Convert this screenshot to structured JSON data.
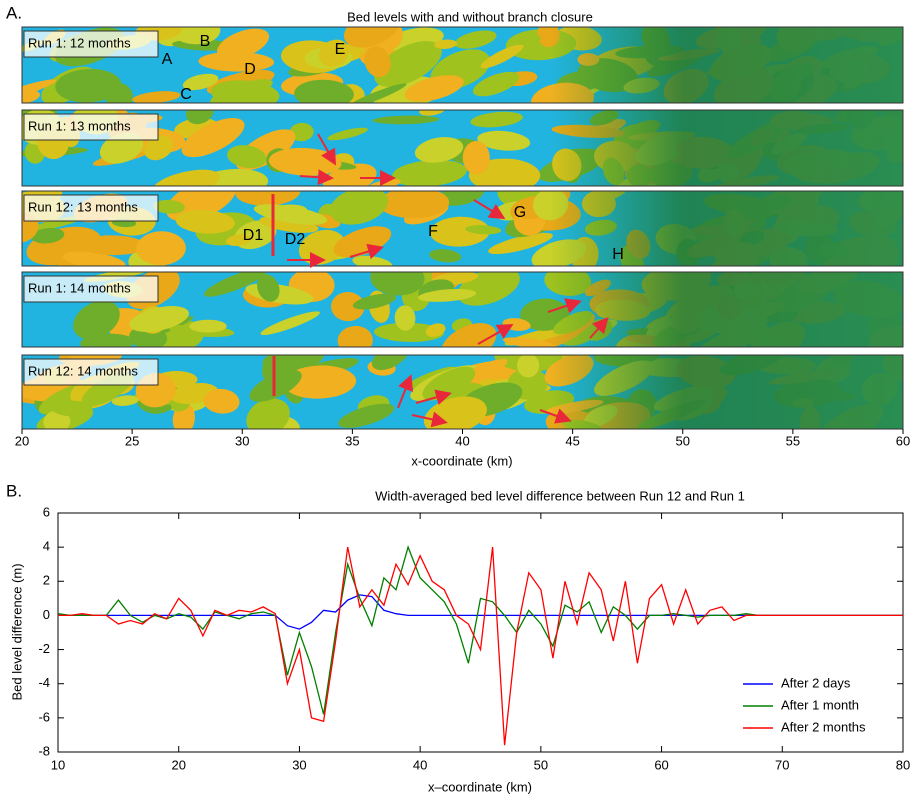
{
  "panel_a": {
    "label": "A.",
    "title": "Bed levels with and without branch closure",
    "strips": [
      "Run 1: 12 months",
      "Run 1: 13 months",
      "Run 12: 13 months",
      "Run 1: 14 months",
      "Run 12: 14 months"
    ],
    "annotations": [
      "A",
      "B",
      "C",
      "D",
      "E",
      "D1",
      "D2",
      "F",
      "G",
      "H"
    ],
    "xlabel": "x-coordinate (km)",
    "xlim": [
      20,
      60
    ],
    "xticks": [
      20,
      25,
      30,
      35,
      40,
      45,
      50,
      55,
      60
    ]
  },
  "chart_data": {
    "type": "line",
    "label": "B.",
    "title": "Width-averaged bed level difference between Run 12 and Run 1",
    "xlabel": "x–coordinate (km)",
    "ylabel": "Bed level difference (m)",
    "xlim": [
      10,
      80
    ],
    "ylim": [
      -8,
      6
    ],
    "xticks": [
      10,
      20,
      30,
      40,
      50,
      60,
      70,
      80
    ],
    "yticks": [
      -8,
      -6,
      -4,
      -2,
      0,
      2,
      4,
      6
    ],
    "legend": "lower right",
    "x": [
      10,
      11,
      12,
      13,
      14,
      15,
      16,
      17,
      18,
      19,
      20,
      21,
      22,
      23,
      24,
      25,
      26,
      27,
      28,
      29,
      30,
      31,
      32,
      33,
      34,
      35,
      36,
      37,
      38,
      39,
      40,
      41,
      42,
      43,
      44,
      45,
      46,
      47,
      48,
      49,
      50,
      51,
      52,
      53,
      54,
      55,
      56,
      57,
      58,
      59,
      60,
      61,
      62,
      63,
      64,
      65,
      66,
      67,
      68,
      69,
      70,
      71,
      72,
      73,
      74,
      75,
      76,
      77,
      78,
      79,
      80
    ],
    "series": [
      {
        "name": "After 2 days",
        "color": "#0000ff",
        "values": [
          0,
          0,
          0,
          0,
          0,
          0,
          0,
          0,
          0,
          0,
          0,
          0,
          0,
          0,
          0,
          0,
          0,
          0,
          0,
          -0.6,
          -0.8,
          -0.4,
          0.3,
          0.2,
          0.9,
          1.2,
          1.1,
          0.3,
          0.1,
          0,
          0,
          0,
          0,
          0,
          0,
          0,
          0,
          0,
          0,
          0,
          0,
          0,
          0,
          0,
          0,
          0,
          0,
          0,
          0,
          0,
          0,
          0,
          0,
          0,
          0,
          0,
          0,
          0,
          0,
          0,
          0,
          0,
          0,
          0,
          0,
          0,
          0,
          0,
          0,
          0,
          0
        ]
      },
      {
        "name": "After 1 month",
        "color": "#008000",
        "values": [
          0.1,
          0,
          0,
          0,
          0,
          0.9,
          0,
          -0.4,
          0,
          -0.2,
          0.1,
          -0.1,
          -0.8,
          0.2,
          0,
          -0.2,
          0.1,
          0.2,
          0,
          -3.5,
          -1,
          -3,
          -5.8,
          -1,
          3,
          1,
          -0.6,
          2.2,
          1.5,
          4,
          2.2,
          1.5,
          0.8,
          -0.5,
          -2.8,
          1,
          0.8,
          0,
          -1,
          0.3,
          -0.5,
          -1.8,
          0.6,
          0.2,
          0.8,
          -1,
          0.5,
          0,
          -0.8,
          0,
          0,
          0.1,
          0,
          -0.1,
          0,
          0,
          0,
          0.1,
          0,
          0,
          0,
          0,
          0,
          0,
          0,
          0,
          0,
          0,
          0,
          0,
          0
        ]
      },
      {
        "name": "After 2 months",
        "color": "#ff0000",
        "values": [
          0,
          0,
          0.1,
          0,
          0,
          -0.5,
          -0.3,
          -0.5,
          0.1,
          -0.2,
          1,
          0.3,
          -1.2,
          0.3,
          0,
          0.3,
          0.2,
          0.5,
          0.1,
          -4,
          -2,
          -6,
          -6.2,
          -1.5,
          4,
          0.5,
          1.5,
          0.6,
          3,
          1.8,
          3.5,
          2,
          1.5,
          0,
          -0.5,
          -2,
          4,
          -7.6,
          -1,
          2.5,
          1.5,
          -2.5,
          2,
          -0.5,
          2.5,
          1.5,
          -1.5,
          2,
          -2.8,
          1,
          1.8,
          -0.5,
          1.5,
          -0.5,
          0.3,
          0.5,
          -0.3,
          0,
          0,
          0,
          0,
          0,
          0,
          0,
          0,
          0,
          0,
          0,
          0,
          0,
          0
        ]
      }
    ]
  }
}
